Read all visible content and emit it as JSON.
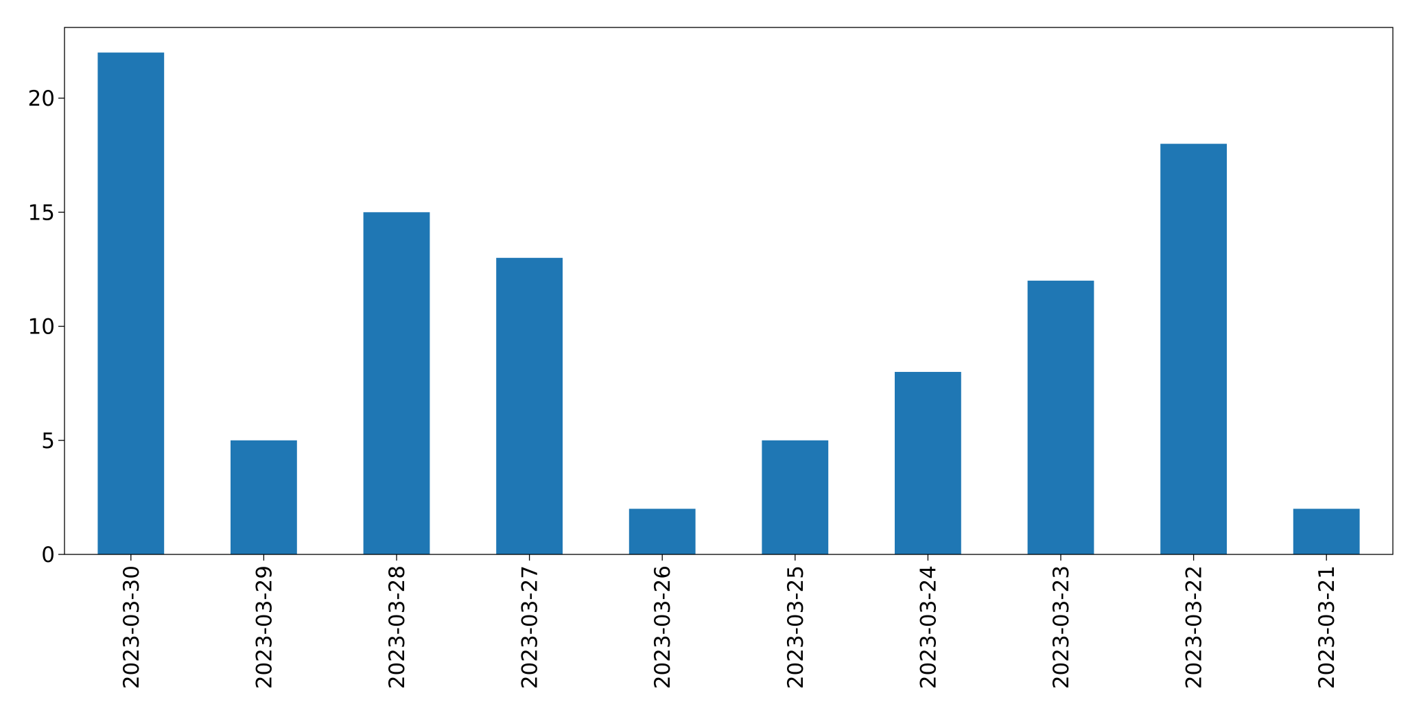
{
  "chart_data": {
    "type": "bar",
    "categories": [
      "2023-03-30",
      "2023-03-29",
      "2023-03-28",
      "2023-03-27",
      "2023-03-26",
      "2023-03-25",
      "2023-03-24",
      "2023-03-23",
      "2023-03-22",
      "2023-03-21"
    ],
    "values": [
      22,
      5,
      15,
      13,
      2,
      5,
      8,
      12,
      18,
      2
    ],
    "color": "#1f77b4",
    "ylim": [
      0,
      23.1
    ],
    "yticks": [
      0,
      5,
      10,
      15,
      20
    ],
    "grid": false
  }
}
